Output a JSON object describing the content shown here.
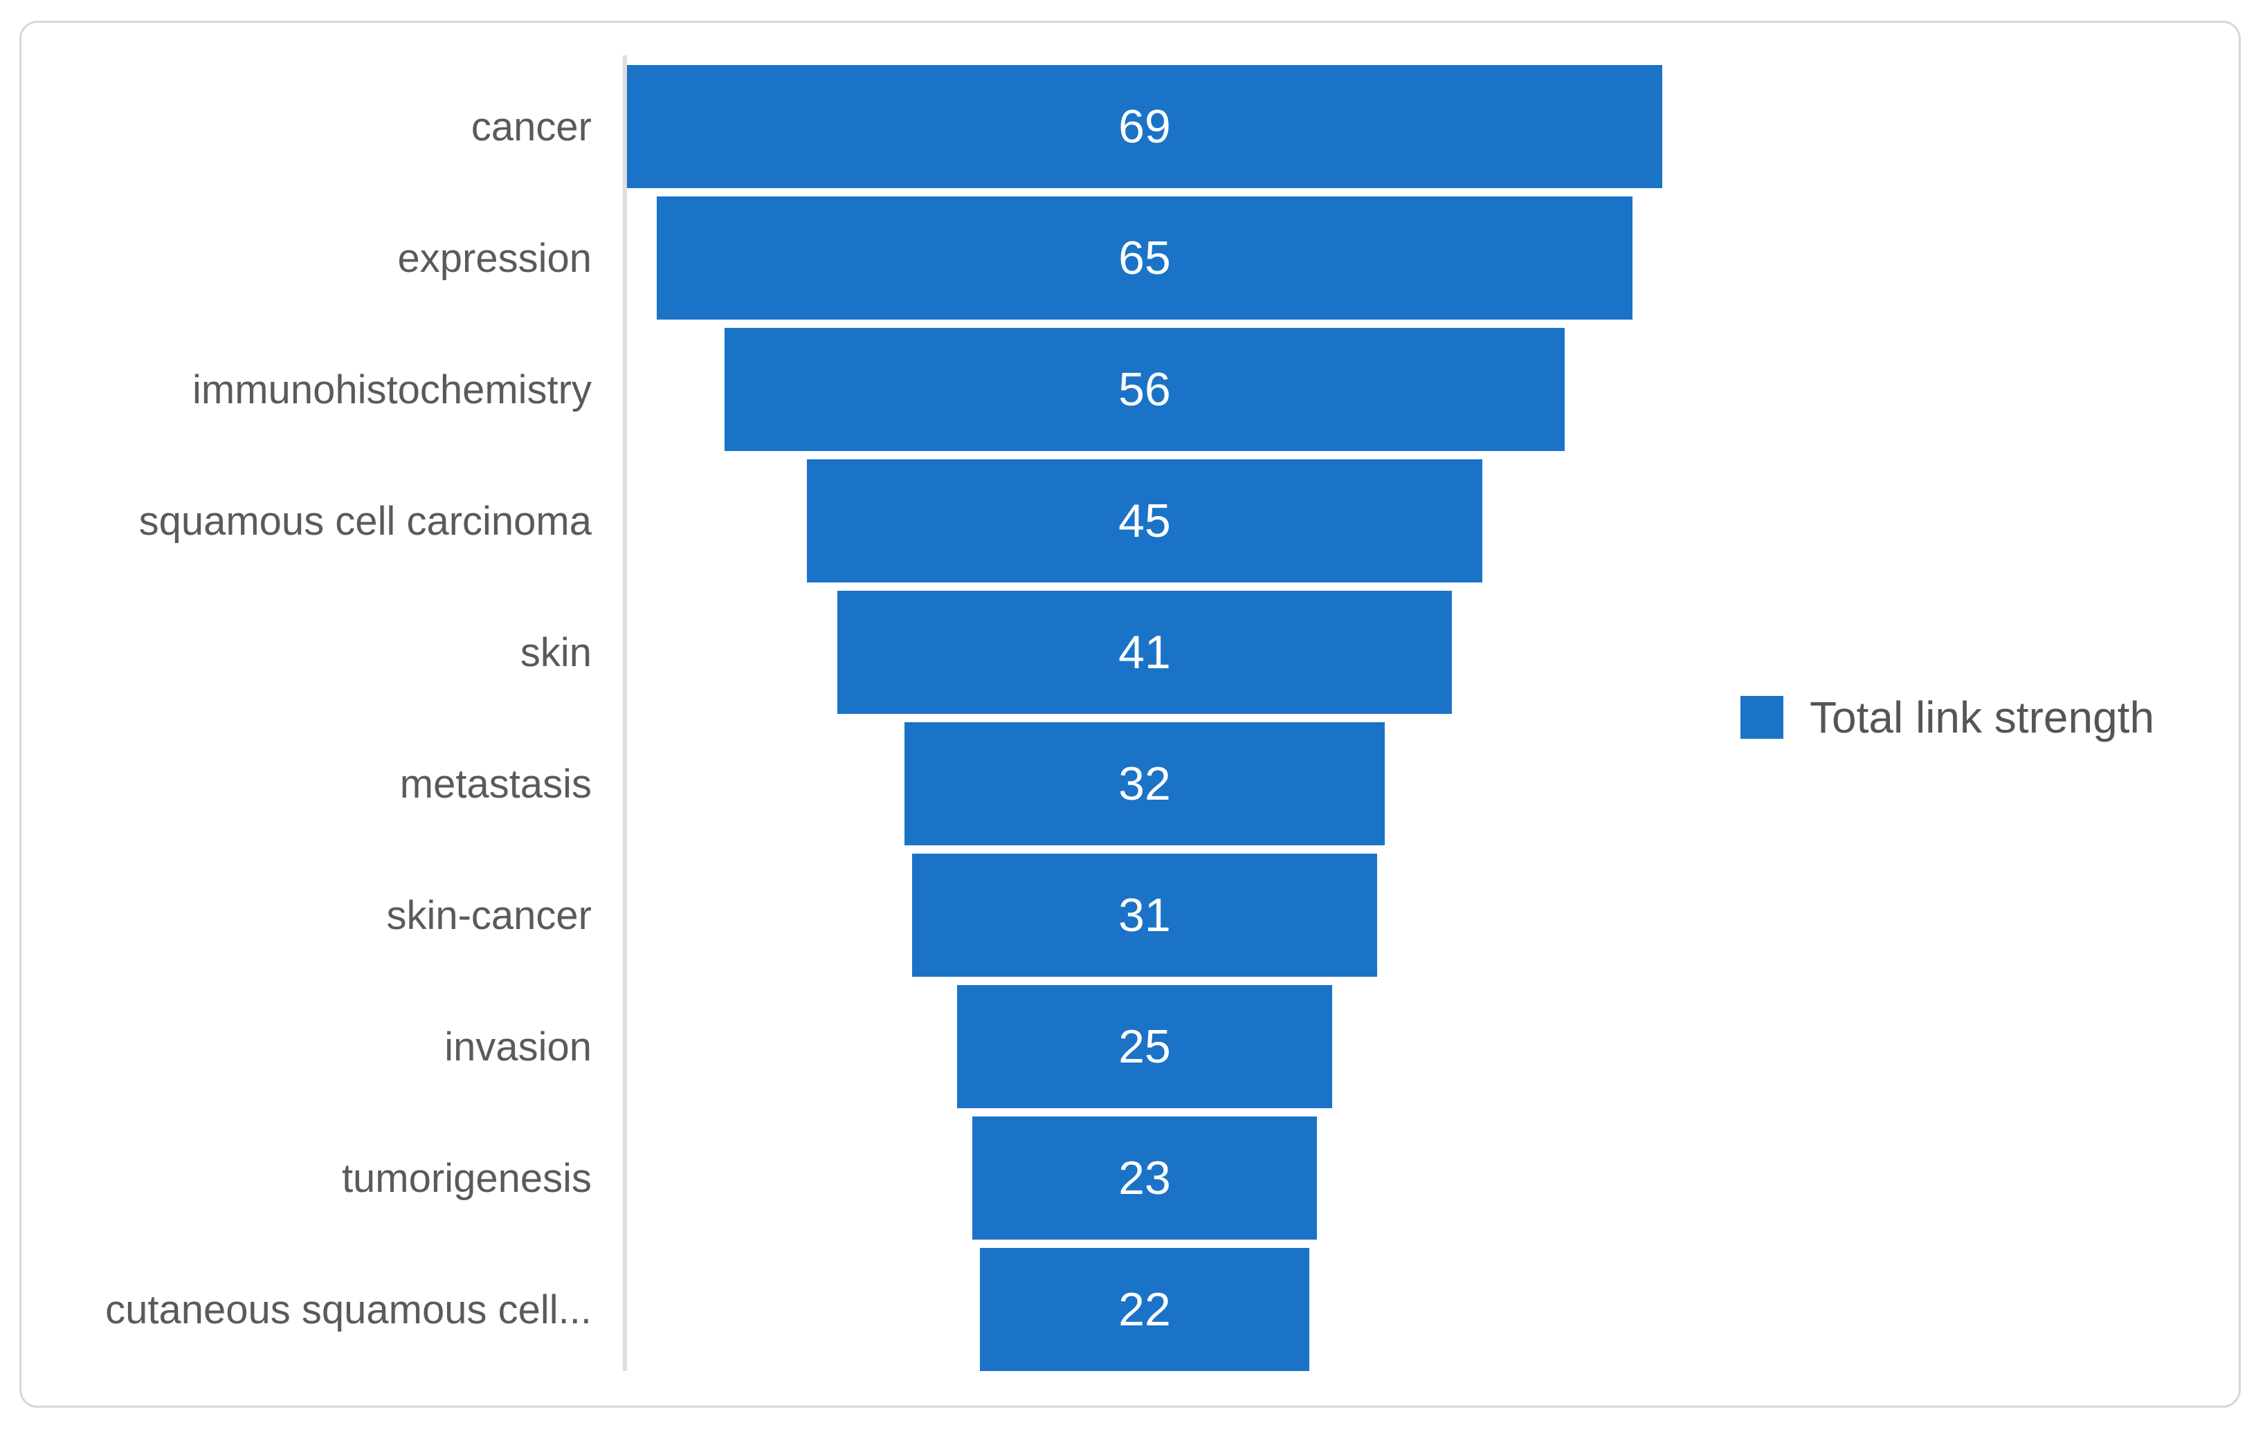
{
  "legend": {
    "label": "Total link strength",
    "marker_color": "#1B73C8"
  },
  "chart_data": {
    "type": "bar",
    "subtype": "funnel",
    "orientation": "horizontal-centered",
    "title": "",
    "xlabel": "",
    "ylabel": "",
    "categories": [
      "cancer",
      "expression",
      "immunohistochemistry",
      "squamous cell carcinoma",
      "skin",
      "metastasis",
      "skin-cancer",
      "invasion",
      "tumorigenesis",
      "cutaneous squamous cell..."
    ],
    "values": [
      69,
      65,
      56,
      45,
      41,
      32,
      31,
      25,
      23,
      22
    ],
    "series_name": "Total link strength",
    "xlim": [
      0,
      69
    ],
    "grid": false,
    "legend_position": "right",
    "bar_color": "#1B73C8",
    "category_label_color": "#5A5A5A",
    "value_label_color": "#FFFFFF",
    "axis_line_color": "#DEDEDE",
    "panel_border_color": "#D6D6D6"
  }
}
